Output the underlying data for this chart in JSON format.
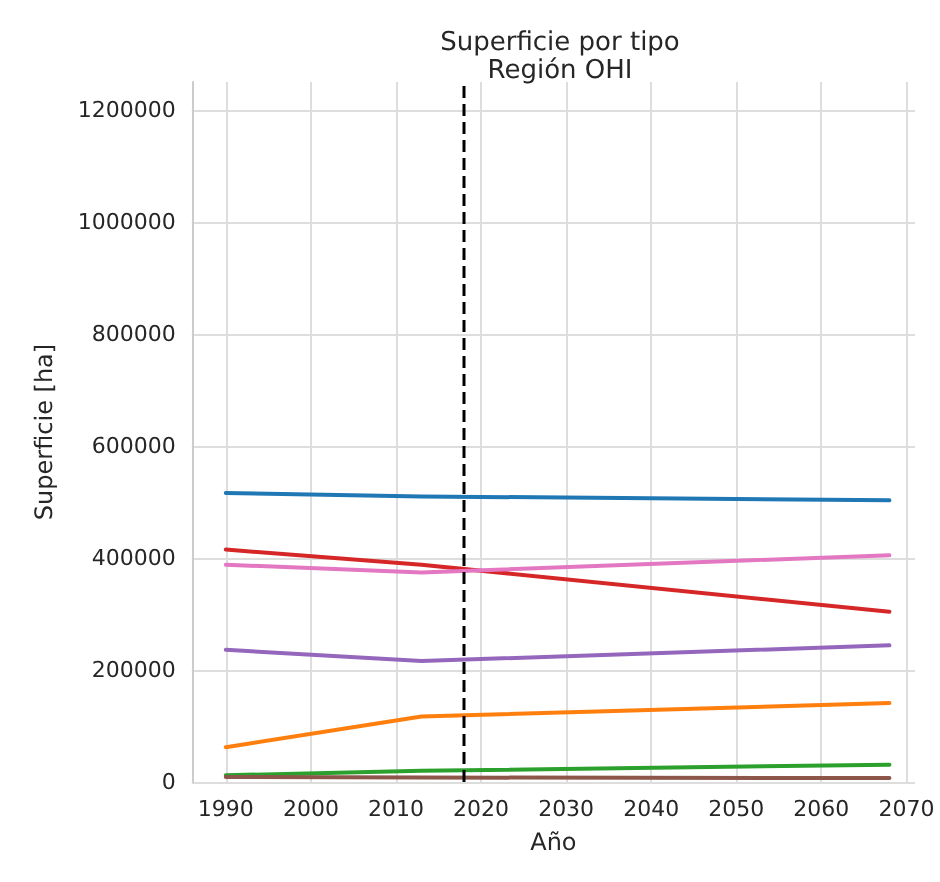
{
  "chart_data": {
    "type": "line",
    "title": "Superficie por tipo",
    "subtitle": "Región OHI",
    "xlabel": "Año",
    "ylabel": "Superficie [ha]",
    "series": [
      {
        "color": "#1f77b4",
        "x": [
          1990,
          2013,
          2068
        ],
        "values": [
          516000,
          510000,
          503000
        ]
      },
      {
        "color": "#ff7f0e",
        "x": [
          1990,
          2013,
          2068
        ],
        "values": [
          62000,
          117000,
          141000
        ]
      },
      {
        "color": "#2ca02c",
        "x": [
          1990,
          2013,
          2068
        ],
        "values": [
          12000,
          20000,
          31000
        ]
      },
      {
        "color": "#d62728",
        "x": [
          1990,
          2013,
          2068
        ],
        "values": [
          415000,
          388000,
          304000
        ]
      },
      {
        "color": "#9467bd",
        "x": [
          1990,
          2013,
          2068
        ],
        "values": [
          236000,
          216000,
          244000
        ]
      },
      {
        "color": "#8c564b",
        "x": [
          1990,
          2013,
          2068
        ],
        "values": [
          9000,
          8000,
          7000
        ]
      },
      {
        "color": "#e377c2",
        "x": [
          1990,
          2013,
          2068
        ],
        "values": [
          388000,
          374000,
          405000
        ]
      }
    ],
    "xlim": [
      1986,
      2071
    ],
    "xticks": [
      1990,
      2000,
      2010,
      2020,
      2030,
      2040,
      2050,
      2060,
      2070
    ],
    "ylim": [
      0,
      1250000
    ],
    "yticks": [
      0,
      200000,
      400000,
      600000,
      800000,
      1000000,
      1200000
    ],
    "ref_lines": [
      {
        "axis": "x",
        "value": 2018,
        "color": "#000000",
        "line_style": "dashed"
      }
    ],
    "grid": true,
    "marker": "none",
    "line_style": "solid"
  }
}
